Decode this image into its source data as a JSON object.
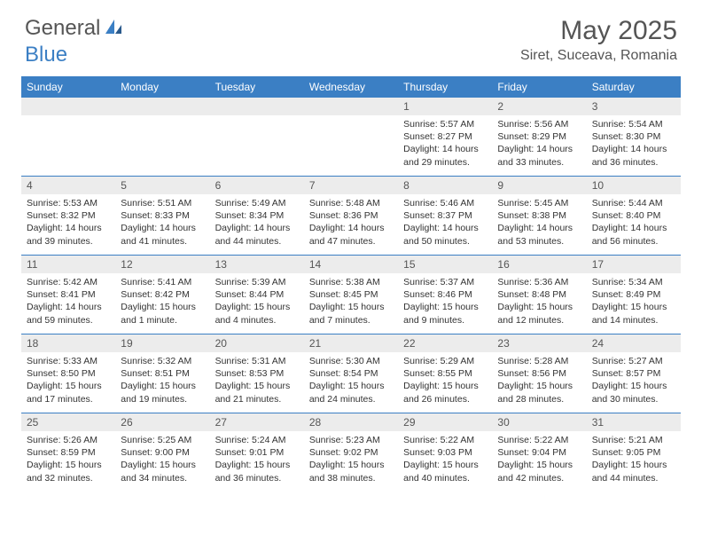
{
  "logo": {
    "text1": "General",
    "text2": "Blue"
  },
  "title": "May 2025",
  "location": "Siret, Suceava, Romania",
  "dayheads": [
    "Sunday",
    "Monday",
    "Tuesday",
    "Wednesday",
    "Thursday",
    "Friday",
    "Saturday"
  ],
  "colors": {
    "header_bg": "#3b7fc4",
    "daynum_bg": "#ececec",
    "text": "#333333",
    "title_text": "#555555"
  },
  "font": {
    "family": "Arial",
    "body_size_pt": 8,
    "title_size_pt": 22,
    "location_size_pt": 12,
    "dayhead_size_pt": 9
  },
  "weeks": [
    [
      {
        "n": "",
        "sr": "",
        "ss": "",
        "dl": ""
      },
      {
        "n": "",
        "sr": "",
        "ss": "",
        "dl": ""
      },
      {
        "n": "",
        "sr": "",
        "ss": "",
        "dl": ""
      },
      {
        "n": "",
        "sr": "",
        "ss": "",
        "dl": ""
      },
      {
        "n": "1",
        "sr": "Sunrise: 5:57 AM",
        "ss": "Sunset: 8:27 PM",
        "dl": "Daylight: 14 hours and 29 minutes."
      },
      {
        "n": "2",
        "sr": "Sunrise: 5:56 AM",
        "ss": "Sunset: 8:29 PM",
        "dl": "Daylight: 14 hours and 33 minutes."
      },
      {
        "n": "3",
        "sr": "Sunrise: 5:54 AM",
        "ss": "Sunset: 8:30 PM",
        "dl": "Daylight: 14 hours and 36 minutes."
      }
    ],
    [
      {
        "n": "4",
        "sr": "Sunrise: 5:53 AM",
        "ss": "Sunset: 8:32 PM",
        "dl": "Daylight: 14 hours and 39 minutes."
      },
      {
        "n": "5",
        "sr": "Sunrise: 5:51 AM",
        "ss": "Sunset: 8:33 PM",
        "dl": "Daylight: 14 hours and 41 minutes."
      },
      {
        "n": "6",
        "sr": "Sunrise: 5:49 AM",
        "ss": "Sunset: 8:34 PM",
        "dl": "Daylight: 14 hours and 44 minutes."
      },
      {
        "n": "7",
        "sr": "Sunrise: 5:48 AM",
        "ss": "Sunset: 8:36 PM",
        "dl": "Daylight: 14 hours and 47 minutes."
      },
      {
        "n": "8",
        "sr": "Sunrise: 5:46 AM",
        "ss": "Sunset: 8:37 PM",
        "dl": "Daylight: 14 hours and 50 minutes."
      },
      {
        "n": "9",
        "sr": "Sunrise: 5:45 AM",
        "ss": "Sunset: 8:38 PM",
        "dl": "Daylight: 14 hours and 53 minutes."
      },
      {
        "n": "10",
        "sr": "Sunrise: 5:44 AM",
        "ss": "Sunset: 8:40 PM",
        "dl": "Daylight: 14 hours and 56 minutes."
      }
    ],
    [
      {
        "n": "11",
        "sr": "Sunrise: 5:42 AM",
        "ss": "Sunset: 8:41 PM",
        "dl": "Daylight: 14 hours and 59 minutes."
      },
      {
        "n": "12",
        "sr": "Sunrise: 5:41 AM",
        "ss": "Sunset: 8:42 PM",
        "dl": "Daylight: 15 hours and 1 minute."
      },
      {
        "n": "13",
        "sr": "Sunrise: 5:39 AM",
        "ss": "Sunset: 8:44 PM",
        "dl": "Daylight: 15 hours and 4 minutes."
      },
      {
        "n": "14",
        "sr": "Sunrise: 5:38 AM",
        "ss": "Sunset: 8:45 PM",
        "dl": "Daylight: 15 hours and 7 minutes."
      },
      {
        "n": "15",
        "sr": "Sunrise: 5:37 AM",
        "ss": "Sunset: 8:46 PM",
        "dl": "Daylight: 15 hours and 9 minutes."
      },
      {
        "n": "16",
        "sr": "Sunrise: 5:36 AM",
        "ss": "Sunset: 8:48 PM",
        "dl": "Daylight: 15 hours and 12 minutes."
      },
      {
        "n": "17",
        "sr": "Sunrise: 5:34 AM",
        "ss": "Sunset: 8:49 PM",
        "dl": "Daylight: 15 hours and 14 minutes."
      }
    ],
    [
      {
        "n": "18",
        "sr": "Sunrise: 5:33 AM",
        "ss": "Sunset: 8:50 PM",
        "dl": "Daylight: 15 hours and 17 minutes."
      },
      {
        "n": "19",
        "sr": "Sunrise: 5:32 AM",
        "ss": "Sunset: 8:51 PM",
        "dl": "Daylight: 15 hours and 19 minutes."
      },
      {
        "n": "20",
        "sr": "Sunrise: 5:31 AM",
        "ss": "Sunset: 8:53 PM",
        "dl": "Daylight: 15 hours and 21 minutes."
      },
      {
        "n": "21",
        "sr": "Sunrise: 5:30 AM",
        "ss": "Sunset: 8:54 PM",
        "dl": "Daylight: 15 hours and 24 minutes."
      },
      {
        "n": "22",
        "sr": "Sunrise: 5:29 AM",
        "ss": "Sunset: 8:55 PM",
        "dl": "Daylight: 15 hours and 26 minutes."
      },
      {
        "n": "23",
        "sr": "Sunrise: 5:28 AM",
        "ss": "Sunset: 8:56 PM",
        "dl": "Daylight: 15 hours and 28 minutes."
      },
      {
        "n": "24",
        "sr": "Sunrise: 5:27 AM",
        "ss": "Sunset: 8:57 PM",
        "dl": "Daylight: 15 hours and 30 minutes."
      }
    ],
    [
      {
        "n": "25",
        "sr": "Sunrise: 5:26 AM",
        "ss": "Sunset: 8:59 PM",
        "dl": "Daylight: 15 hours and 32 minutes."
      },
      {
        "n": "26",
        "sr": "Sunrise: 5:25 AM",
        "ss": "Sunset: 9:00 PM",
        "dl": "Daylight: 15 hours and 34 minutes."
      },
      {
        "n": "27",
        "sr": "Sunrise: 5:24 AM",
        "ss": "Sunset: 9:01 PM",
        "dl": "Daylight: 15 hours and 36 minutes."
      },
      {
        "n": "28",
        "sr": "Sunrise: 5:23 AM",
        "ss": "Sunset: 9:02 PM",
        "dl": "Daylight: 15 hours and 38 minutes."
      },
      {
        "n": "29",
        "sr": "Sunrise: 5:22 AM",
        "ss": "Sunset: 9:03 PM",
        "dl": "Daylight: 15 hours and 40 minutes."
      },
      {
        "n": "30",
        "sr": "Sunrise: 5:22 AM",
        "ss": "Sunset: 9:04 PM",
        "dl": "Daylight: 15 hours and 42 minutes."
      },
      {
        "n": "31",
        "sr": "Sunrise: 5:21 AM",
        "ss": "Sunset: 9:05 PM",
        "dl": "Daylight: 15 hours and 44 minutes."
      }
    ]
  ]
}
